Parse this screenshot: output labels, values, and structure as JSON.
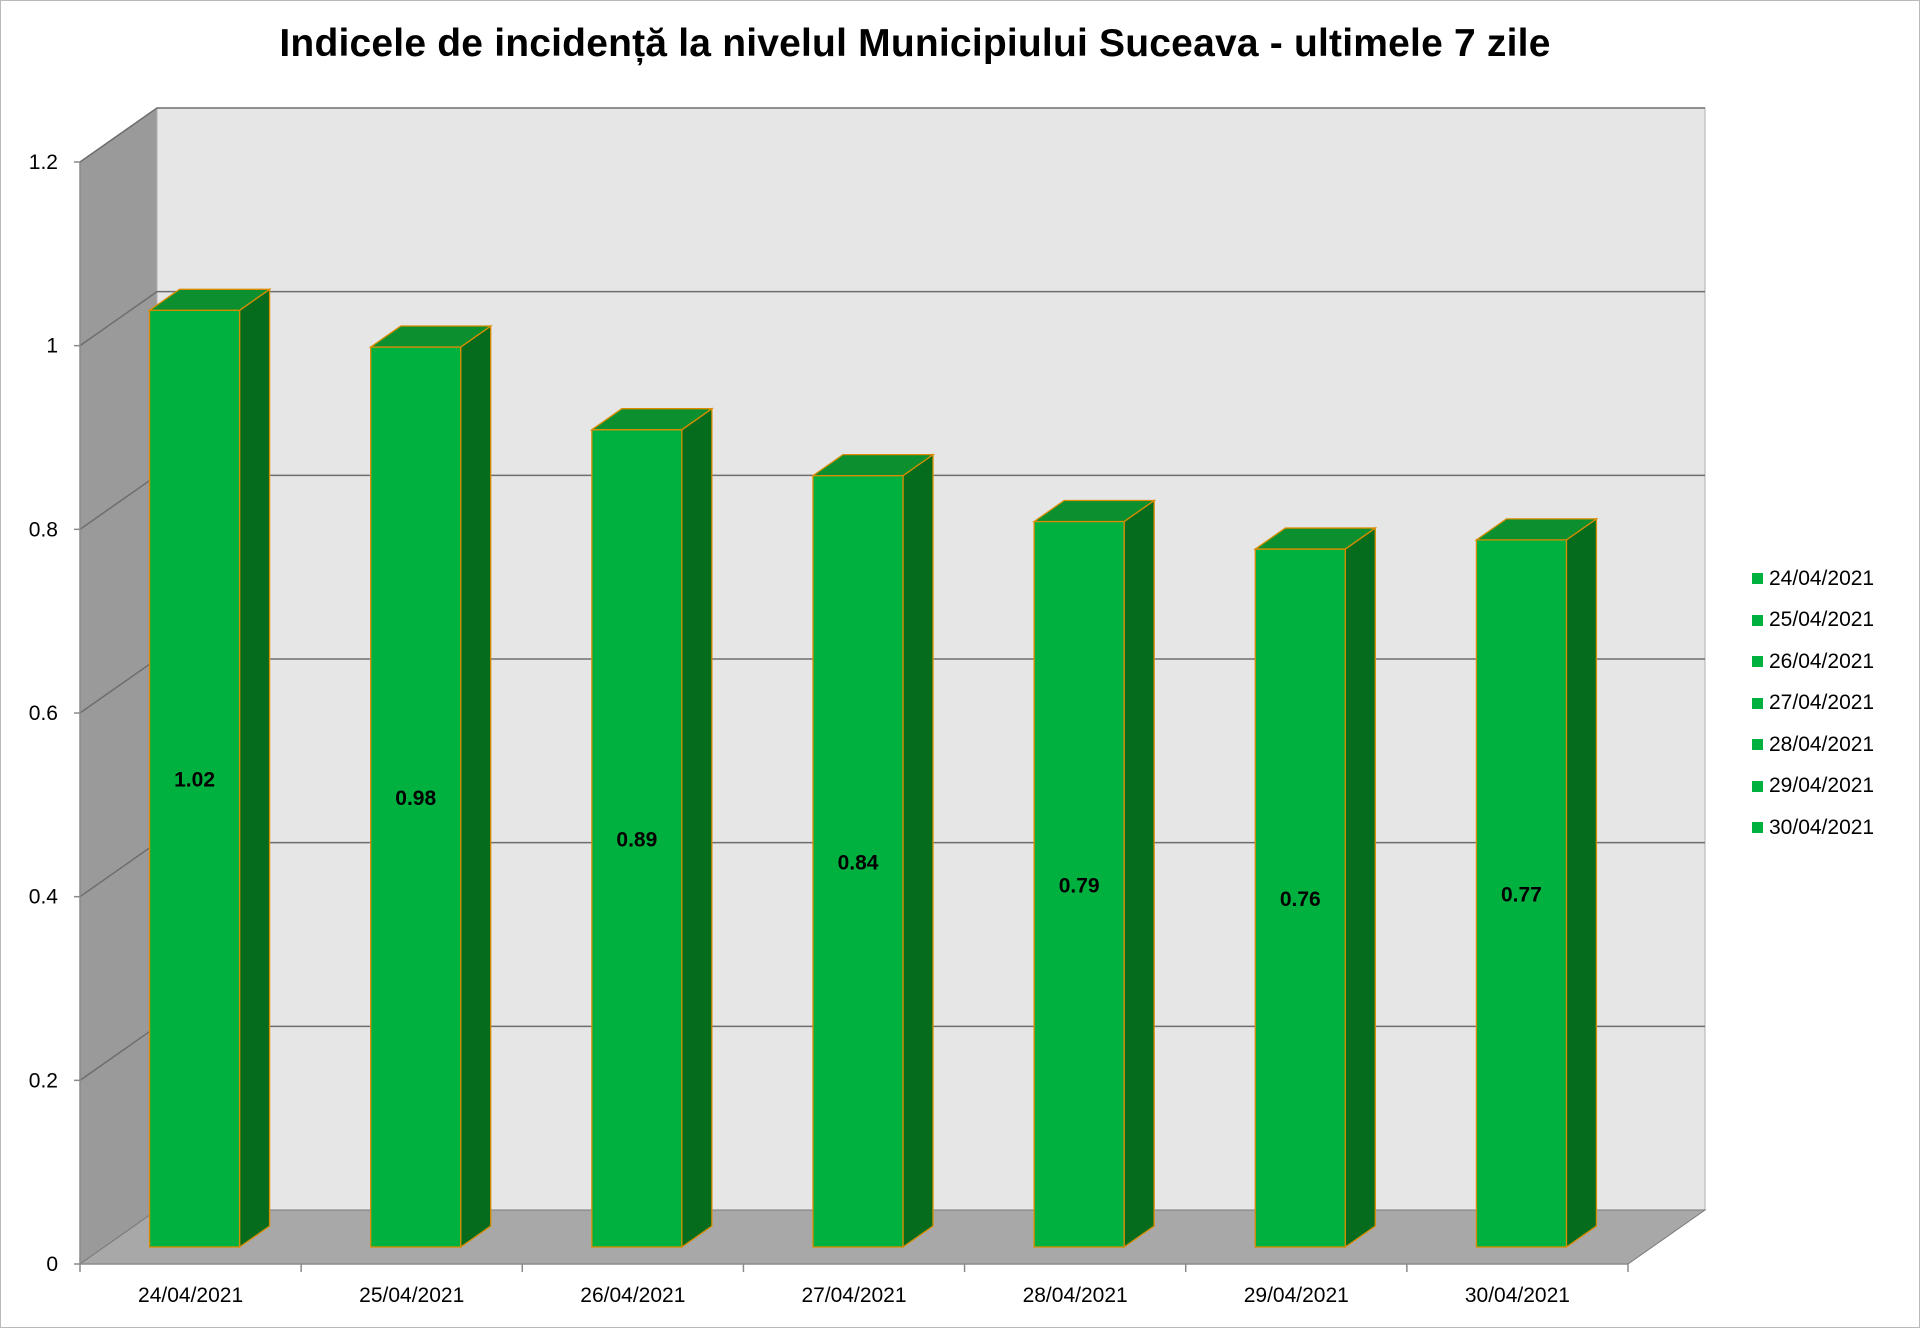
{
  "colors": {
    "bar_front": "#00b140",
    "bar_top": "#0c8f2f",
    "bar_side": "#056c1e",
    "bar_edge": "#d98c00",
    "back_wall": "#e6e6e6",
    "side_wall": "#9a9a9a",
    "floor": "#a8a8a8",
    "gridline": "#6e6e6e"
  },
  "chart_data": {
    "type": "bar",
    "title": "Indicele de incidență la nivelul Municipiului Suceava - ultimele 7 zile",
    "xlabel": "",
    "ylabel": "",
    "categories": [
      "24/04/2021",
      "25/04/2021",
      "26/04/2021",
      "27/04/2021",
      "28/04/2021",
      "29/04/2021",
      "30/04/2021"
    ],
    "values": [
      1.02,
      0.98,
      0.89,
      0.84,
      0.79,
      0.76,
      0.77
    ],
    "value_labels": [
      "1.02",
      "0.98",
      "0.89",
      "0.84",
      "0.79",
      "0.76",
      "0.77"
    ],
    "ylim": [
      0,
      1.2
    ],
    "yticks": [
      "0",
      "0.2",
      "0.4",
      "0.6",
      "0.8",
      "1",
      "1.2"
    ],
    "grid": true,
    "3d": true,
    "legend_position": "right",
    "legend": [
      "24/04/2021",
      "25/04/2021",
      "26/04/2021",
      "27/04/2021",
      "28/04/2021",
      "29/04/2021",
      "30/04/2021"
    ]
  }
}
